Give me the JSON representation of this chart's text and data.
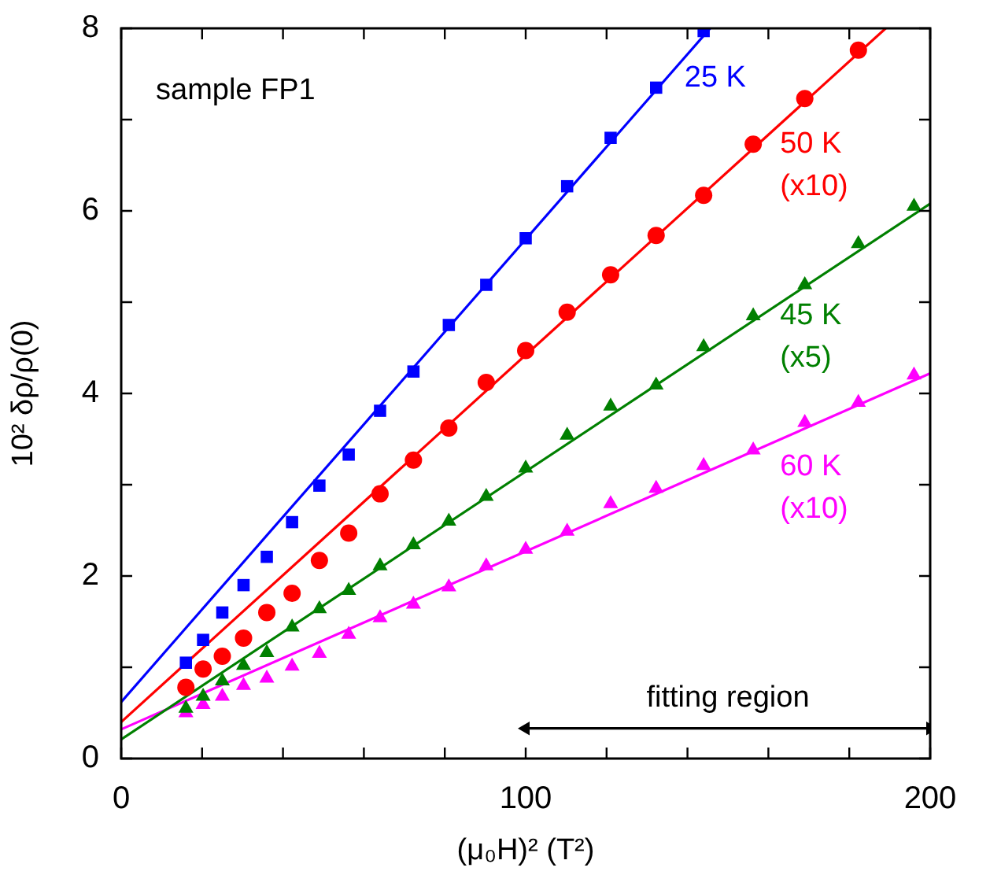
{
  "chart_data": {
    "type": "scatter",
    "xlabel": "(μ₀H)² (T²)",
    "ylabel": "10² δρ/ρ(0)",
    "xlim": [
      0,
      200
    ],
    "xticks": [
      0,
      {
        "value": 20,
        "label": null
      },
      {
        "value": 40,
        "label": null
      },
      {
        "value": 60,
        "label": null
      },
      {
        "value": 80,
        "label": null
      },
      100,
      {
        "value": 120,
        "label": null
      },
      {
        "value": 140,
        "label": null
      },
      {
        "value": 160,
        "label": null
      },
      {
        "value": 180,
        "label": null
      },
      200
    ],
    "ylim": [
      0,
      8
    ],
    "yticks": [
      0,
      {
        "value": 1,
        "label": null
      },
      2,
      {
        "value": 3,
        "label": null
      },
      4,
      {
        "value": 5,
        "label": null
      },
      6,
      {
        "value": 7,
        "label": null
      },
      8
    ],
    "annotations": [
      "sample FP1",
      {
        "text": "fitting region",
        "x": 150,
        "y": 0.33
      }
    ],
    "series": [
      {
        "name": "25 K",
        "color": "#0000ff",
        "marker": "square",
        "x": [
          16,
          20.25,
          25,
          30.25,
          36,
          42.25,
          49,
          56.25,
          64,
          72.25,
          81,
          90.25,
          100,
          110.25,
          121,
          132.25,
          144
        ],
        "values": [
          1.05,
          1.3,
          1.6,
          1.9,
          2.21,
          2.59,
          2.99,
          3.33,
          3.81,
          4.24,
          4.75,
          5.19,
          5.7,
          6.27,
          6.8,
          7.35,
          7.97
        ]
      },
      {
        "name": "50 K (x10)",
        "color": "#ff0000",
        "marker": "circle",
        "x": [
          16,
          20.25,
          25,
          30.25,
          36,
          42.25,
          49,
          56.25,
          64,
          72.25,
          81,
          90.25,
          100,
          110.25,
          121,
          132.25,
          144,
          156.25,
          169,
          182.25
        ],
        "values": [
          0.78,
          0.98,
          1.12,
          1.32,
          1.6,
          1.81,
          2.17,
          2.47,
          2.9,
          3.27,
          3.62,
          4.12,
          4.47,
          4.89,
          5.3,
          5.73,
          6.17,
          6.73,
          7.23,
          7.76
        ]
      },
      {
        "name": "45 K (x5)",
        "color": "#008000",
        "marker": "triangle",
        "x": [
          16,
          20.25,
          25,
          30.25,
          36,
          42.25,
          49,
          56.25,
          64,
          72.25,
          81,
          90.25,
          100,
          110.25,
          121,
          132.25,
          144,
          156.25,
          169,
          182.25,
          196
        ],
        "values": [
          0.55,
          0.68,
          0.85,
          1.02,
          1.16,
          1.44,
          1.64,
          1.84,
          2.11,
          2.34,
          2.6,
          2.87,
          3.18,
          3.54,
          3.86,
          4.09,
          4.51,
          4.85,
          5.19,
          5.64,
          6.05
        ]
      },
      {
        "name": "60 K (x10)",
        "color": "#ff00ff",
        "marker": "triangle",
        "x": [
          16,
          20.25,
          25,
          30.25,
          36,
          42.25,
          49,
          56.25,
          64,
          72.25,
          81,
          90.25,
          100,
          110.25,
          121,
          132.25,
          144,
          156.25,
          169,
          182.25,
          196
        ],
        "values": [
          0.5,
          0.59,
          0.68,
          0.8,
          0.88,
          1.01,
          1.15,
          1.36,
          1.54,
          1.69,
          1.88,
          2.11,
          2.29,
          2.49,
          2.79,
          2.96,
          3.21,
          3.38,
          3.68,
          3.9,
          4.2
        ]
      },
      {
        "type": "line",
        "color": "#0000ff",
        "marker": "none",
        "x": [
          0,
          145.6
        ],
        "values": [
          0.62,
          8
        ]
      },
      {
        "type": "line",
        "color": "#ff0000",
        "marker": "none",
        "x": [
          0,
          189
        ],
        "values": [
          0.4,
          8
        ]
      },
      {
        "type": "line",
        "color": "#008000",
        "marker": "none",
        "x": [
          0,
          200
        ],
        "values": [
          0.21,
          6.08
        ]
      },
      {
        "type": "line",
        "color": "#ff00ff",
        "marker": "none",
        "x": [
          0,
          200
        ],
        "values": [
          0.32,
          4.22
        ]
      },
      {
        "type": "line",
        "color": "#000000",
        "marker": "triangle",
        "x": [
          100,
          200
        ],
        "values": [
          0.33,
          0.33
        ]
      }
    ]
  }
}
